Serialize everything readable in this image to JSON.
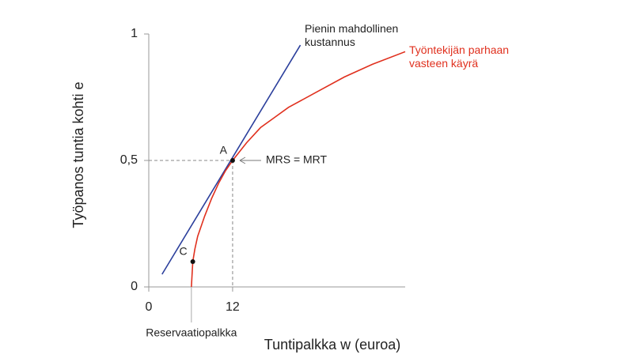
{
  "chart_data": {
    "type": "line",
    "xlabel": "Tuntipalkka w (euroa)",
    "ylabel": "Työpanos tuntia kohti e",
    "xlim": [
      0,
      36.7
    ],
    "xticks": [
      0,
      12
    ],
    "ylim": [
      0,
      1
    ],
    "yticks": [
      0,
      {
        "value": 0.5,
        "label": "0,5"
      },
      1
    ],
    "series": [
      {
        "name": "Pienin mahdollinen kustannus",
        "color": "#2b3f9c",
        "x": [
          1.9,
          21.7
        ],
        "values": [
          0.05,
          0.956
        ]
      },
      {
        "name": "Työntekijän parhaan vasteen käyrä",
        "color": "#e0301e",
        "x": [
          6.1,
          6.3,
          6.6,
          7,
          8,
          9,
          10,
          11,
          12,
          14,
          16,
          18,
          20,
          24,
          28,
          32,
          36.7
        ],
        "values": [
          0,
          0.1,
          0.15,
          0.2,
          0.28,
          0.35,
          0.41,
          0.46,
          0.5,
          0.57,
          0.63,
          0.67,
          0.71,
          0.77,
          0.83,
          0.88,
          0.93
        ]
      }
    ],
    "points": [
      {
        "label": "A",
        "x": 12,
        "y": 0.5
      },
      {
        "label": "C",
        "x": 6.3,
        "y": 0.1
      }
    ],
    "annotations": [
      "MRS = MRT",
      "Reservaatiopalkka"
    ]
  }
}
